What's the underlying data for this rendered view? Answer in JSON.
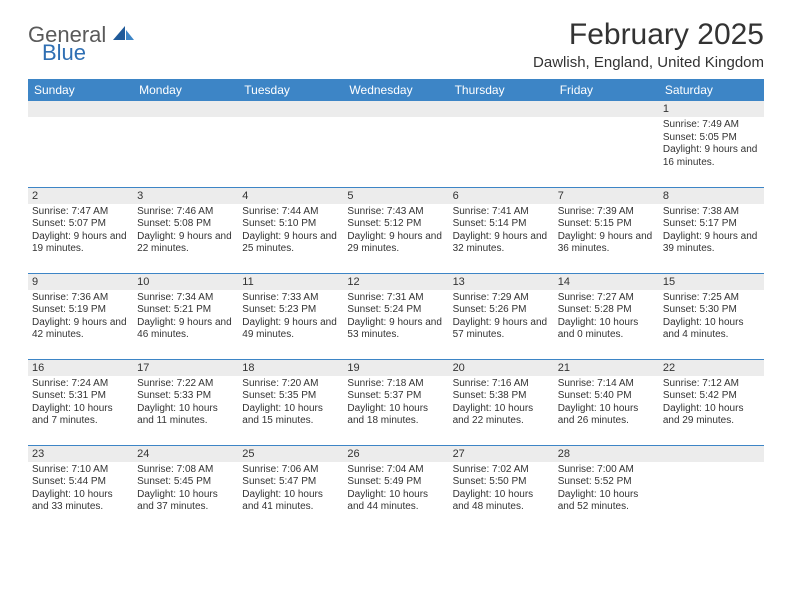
{
  "brand": {
    "part1": "General",
    "part2": "Blue"
  },
  "title": "February 2025",
  "location": "Dawlish, England, United Kingdom",
  "colors": {
    "header_bg": "#3d85c6",
    "header_text": "#ffffff",
    "band_bg": "#ececec",
    "rule": "#3d85c6",
    "logo_gray": "#5a5a5a",
    "logo_blue": "#2f6fb3"
  },
  "dayHeaders": [
    "Sunday",
    "Monday",
    "Tuesday",
    "Wednesday",
    "Thursday",
    "Friday",
    "Saturday"
  ],
  "weeks": [
    [
      {
        "n": "",
        "sunrise": "",
        "sunset": "",
        "daylight": ""
      },
      {
        "n": "",
        "sunrise": "",
        "sunset": "",
        "daylight": ""
      },
      {
        "n": "",
        "sunrise": "",
        "sunset": "",
        "daylight": ""
      },
      {
        "n": "",
        "sunrise": "",
        "sunset": "",
        "daylight": ""
      },
      {
        "n": "",
        "sunrise": "",
        "sunset": "",
        "daylight": ""
      },
      {
        "n": "",
        "sunrise": "",
        "sunset": "",
        "daylight": ""
      },
      {
        "n": "1",
        "sunrise": "Sunrise: 7:49 AM",
        "sunset": "Sunset: 5:05 PM",
        "daylight": "Daylight: 9 hours and 16 minutes."
      }
    ],
    [
      {
        "n": "2",
        "sunrise": "Sunrise: 7:47 AM",
        "sunset": "Sunset: 5:07 PM",
        "daylight": "Daylight: 9 hours and 19 minutes."
      },
      {
        "n": "3",
        "sunrise": "Sunrise: 7:46 AM",
        "sunset": "Sunset: 5:08 PM",
        "daylight": "Daylight: 9 hours and 22 minutes."
      },
      {
        "n": "4",
        "sunrise": "Sunrise: 7:44 AM",
        "sunset": "Sunset: 5:10 PM",
        "daylight": "Daylight: 9 hours and 25 minutes."
      },
      {
        "n": "5",
        "sunrise": "Sunrise: 7:43 AM",
        "sunset": "Sunset: 5:12 PM",
        "daylight": "Daylight: 9 hours and 29 minutes."
      },
      {
        "n": "6",
        "sunrise": "Sunrise: 7:41 AM",
        "sunset": "Sunset: 5:14 PM",
        "daylight": "Daylight: 9 hours and 32 minutes."
      },
      {
        "n": "7",
        "sunrise": "Sunrise: 7:39 AM",
        "sunset": "Sunset: 5:15 PM",
        "daylight": "Daylight: 9 hours and 36 minutes."
      },
      {
        "n": "8",
        "sunrise": "Sunrise: 7:38 AM",
        "sunset": "Sunset: 5:17 PM",
        "daylight": "Daylight: 9 hours and 39 minutes."
      }
    ],
    [
      {
        "n": "9",
        "sunrise": "Sunrise: 7:36 AM",
        "sunset": "Sunset: 5:19 PM",
        "daylight": "Daylight: 9 hours and 42 minutes."
      },
      {
        "n": "10",
        "sunrise": "Sunrise: 7:34 AM",
        "sunset": "Sunset: 5:21 PM",
        "daylight": "Daylight: 9 hours and 46 minutes."
      },
      {
        "n": "11",
        "sunrise": "Sunrise: 7:33 AM",
        "sunset": "Sunset: 5:23 PM",
        "daylight": "Daylight: 9 hours and 49 minutes."
      },
      {
        "n": "12",
        "sunrise": "Sunrise: 7:31 AM",
        "sunset": "Sunset: 5:24 PM",
        "daylight": "Daylight: 9 hours and 53 minutes."
      },
      {
        "n": "13",
        "sunrise": "Sunrise: 7:29 AM",
        "sunset": "Sunset: 5:26 PM",
        "daylight": "Daylight: 9 hours and 57 minutes."
      },
      {
        "n": "14",
        "sunrise": "Sunrise: 7:27 AM",
        "sunset": "Sunset: 5:28 PM",
        "daylight": "Daylight: 10 hours and 0 minutes."
      },
      {
        "n": "15",
        "sunrise": "Sunrise: 7:25 AM",
        "sunset": "Sunset: 5:30 PM",
        "daylight": "Daylight: 10 hours and 4 minutes."
      }
    ],
    [
      {
        "n": "16",
        "sunrise": "Sunrise: 7:24 AM",
        "sunset": "Sunset: 5:31 PM",
        "daylight": "Daylight: 10 hours and 7 minutes."
      },
      {
        "n": "17",
        "sunrise": "Sunrise: 7:22 AM",
        "sunset": "Sunset: 5:33 PM",
        "daylight": "Daylight: 10 hours and 11 minutes."
      },
      {
        "n": "18",
        "sunrise": "Sunrise: 7:20 AM",
        "sunset": "Sunset: 5:35 PM",
        "daylight": "Daylight: 10 hours and 15 minutes."
      },
      {
        "n": "19",
        "sunrise": "Sunrise: 7:18 AM",
        "sunset": "Sunset: 5:37 PM",
        "daylight": "Daylight: 10 hours and 18 minutes."
      },
      {
        "n": "20",
        "sunrise": "Sunrise: 7:16 AM",
        "sunset": "Sunset: 5:38 PM",
        "daylight": "Daylight: 10 hours and 22 minutes."
      },
      {
        "n": "21",
        "sunrise": "Sunrise: 7:14 AM",
        "sunset": "Sunset: 5:40 PM",
        "daylight": "Daylight: 10 hours and 26 minutes."
      },
      {
        "n": "22",
        "sunrise": "Sunrise: 7:12 AM",
        "sunset": "Sunset: 5:42 PM",
        "daylight": "Daylight: 10 hours and 29 minutes."
      }
    ],
    [
      {
        "n": "23",
        "sunrise": "Sunrise: 7:10 AM",
        "sunset": "Sunset: 5:44 PM",
        "daylight": "Daylight: 10 hours and 33 minutes."
      },
      {
        "n": "24",
        "sunrise": "Sunrise: 7:08 AM",
        "sunset": "Sunset: 5:45 PM",
        "daylight": "Daylight: 10 hours and 37 minutes."
      },
      {
        "n": "25",
        "sunrise": "Sunrise: 7:06 AM",
        "sunset": "Sunset: 5:47 PM",
        "daylight": "Daylight: 10 hours and 41 minutes."
      },
      {
        "n": "26",
        "sunrise": "Sunrise: 7:04 AM",
        "sunset": "Sunset: 5:49 PM",
        "daylight": "Daylight: 10 hours and 44 minutes."
      },
      {
        "n": "27",
        "sunrise": "Sunrise: 7:02 AM",
        "sunset": "Sunset: 5:50 PM",
        "daylight": "Daylight: 10 hours and 48 minutes."
      },
      {
        "n": "28",
        "sunrise": "Sunrise: 7:00 AM",
        "sunset": "Sunset: 5:52 PM",
        "daylight": "Daylight: 10 hours and 52 minutes."
      },
      {
        "n": "",
        "sunrise": "",
        "sunset": "",
        "daylight": ""
      }
    ]
  ]
}
